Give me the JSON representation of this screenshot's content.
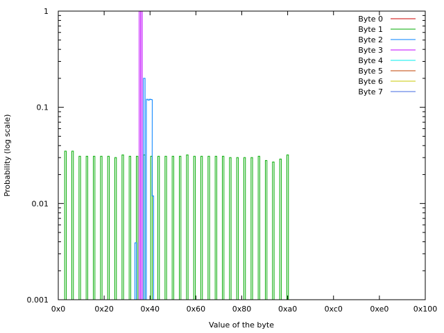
{
  "chart_data": {
    "type": "line",
    "title": "",
    "xlabel": "Value of the byte",
    "ylabel": "Probability (log scale)",
    "x_scale": "linear",
    "y_scale": "log",
    "xlim": [
      0,
      256
    ],
    "ylim": [
      0.001,
      1
    ],
    "x_ticks": [
      {
        "value": 0,
        "label": "0x0"
      },
      {
        "value": 32,
        "label": "0x20"
      },
      {
        "value": 64,
        "label": "0x40"
      },
      {
        "value": 96,
        "label": "0x60"
      },
      {
        "value": 128,
        "label": "0x80"
      },
      {
        "value": 160,
        "label": "0xa0"
      },
      {
        "value": 192,
        "label": "0xc0"
      },
      {
        "value": 224,
        "label": "0xe0"
      },
      {
        "value": 256,
        "label": "0x100"
      }
    ],
    "y_ticks": [
      {
        "value": 0.001,
        "label": "0.001"
      },
      {
        "value": 0.01,
        "label": "0.01"
      },
      {
        "value": 0.1,
        "label": "0.1"
      },
      {
        "value": 1,
        "label": "1"
      }
    ],
    "grid": false,
    "legend_position": "top-right",
    "series": [
      {
        "name": "Byte 0",
        "color": "#cc0000",
        "points": []
      },
      {
        "name": "Byte 1",
        "color": "#00aa00",
        "points": [
          [
            5,
            0.035
          ],
          [
            10,
            0.035
          ],
          [
            15,
            0.031
          ],
          [
            20,
            0.031
          ],
          [
            25,
            0.031
          ],
          [
            30,
            0.031
          ],
          [
            35,
            0.031
          ],
          [
            40,
            0.03
          ],
          [
            45,
            0.032
          ],
          [
            50,
            0.031
          ],
          [
            55,
            0.031
          ],
          [
            60,
            0.032
          ],
          [
            65,
            0.031
          ],
          [
            70,
            0.031
          ],
          [
            75,
            0.031
          ],
          [
            80,
            0.031
          ],
          [
            85,
            0.031
          ],
          [
            90,
            0.032
          ],
          [
            95,
            0.031
          ],
          [
            100,
            0.031
          ],
          [
            105,
            0.031
          ],
          [
            110,
            0.031
          ],
          [
            115,
            0.031
          ],
          [
            120,
            0.03
          ],
          [
            125,
            0.03
          ],
          [
            130,
            0.03
          ],
          [
            135,
            0.03
          ],
          [
            140,
            0.031
          ],
          [
            145,
            0.028
          ],
          [
            150,
            0.027
          ],
          [
            155,
            0.029
          ],
          [
            160,
            0.032
          ]
        ]
      },
      {
        "name": "Byte 2",
        "color": "#0080ff",
        "points": [
          [
            54,
            0.0039
          ],
          [
            60,
            0.2
          ],
          [
            62,
            0.121
          ],
          [
            63,
            0.119
          ],
          [
            64,
            0.121
          ],
          [
            65,
            0.12
          ],
          [
            66,
            0.012
          ]
        ]
      },
      {
        "name": "Byte 3",
        "color": "#c000ff",
        "points": [
          [
            57,
            1
          ],
          [
            58,
            1
          ]
        ]
      },
      {
        "name": "Byte 4",
        "color": "#00eeee",
        "points": []
      },
      {
        "name": "Byte 5",
        "color": "#c04000",
        "points": []
      },
      {
        "name": "Byte 6",
        "color": "#c8c800",
        "points": []
      },
      {
        "name": "Byte 7",
        "color": "#4169e1",
        "points": []
      }
    ]
  }
}
